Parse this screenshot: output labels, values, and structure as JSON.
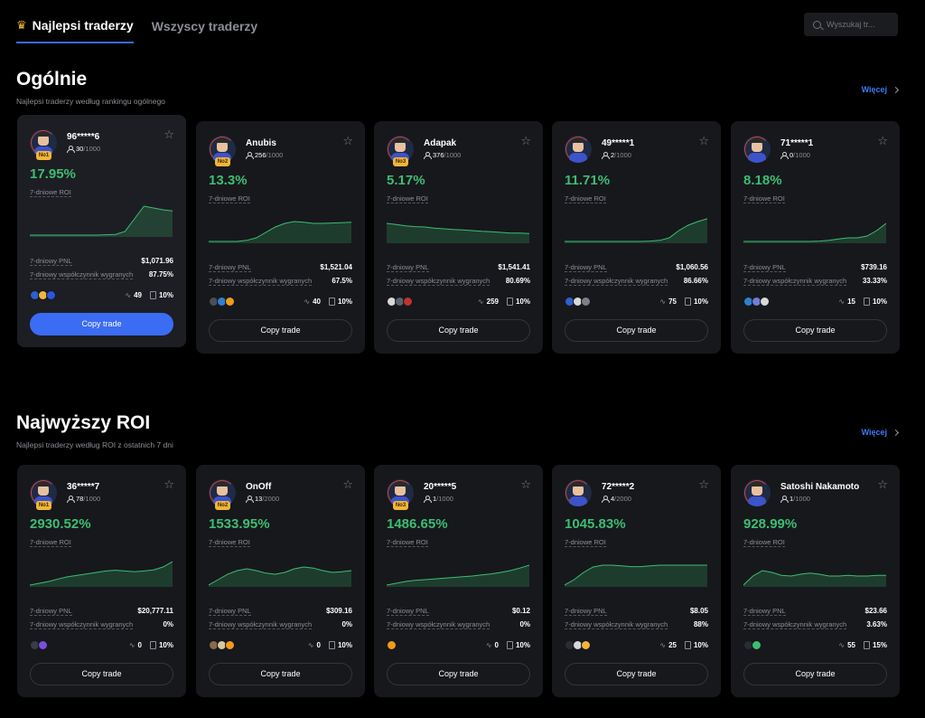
{
  "tabs": [
    {
      "label": "Najlepsi traderzy",
      "active": true,
      "icon": "crown-icon"
    },
    {
      "label": "Wszyscy traderzy",
      "active": false
    }
  ],
  "search": {
    "placeholder": "Wyszukaj tr..."
  },
  "colors": {
    "accent": "#3b6cf4",
    "positive": "#3dbd73",
    "rank_badge": "#f2b53a"
  },
  "sections": [
    {
      "title": "Ogólnie",
      "subtitle": "Najlepsi traderzy według rankingu ogólnego",
      "more": "Więcej",
      "cards": [
        {
          "name": "96*****6",
          "followers": "30",
          "max": "/1000",
          "rank": "No1",
          "roi": "17.95%",
          "roi_label": "7-dniowe ROI",
          "pnl_label": "7-dniowy PNL",
          "pnl": "$1,071.96",
          "win_label": "7-dniowy współczynnik wygranych",
          "win": "87.75%",
          "trades": "49",
          "share": "10%",
          "button": "Copy trade",
          "featured": true,
          "spark": [
            0.05,
            0.05,
            0.05,
            0.05,
            0.05,
            0.05,
            0.05,
            0.05,
            0.06,
            0.07,
            0.15,
            0.5,
            0.85,
            0.8,
            0.75,
            0.72
          ],
          "coins": [
            "#2f5fd0",
            "#f2b53a",
            "#2b54e0"
          ]
        },
        {
          "name": "Anubis",
          "followers": "256",
          "max": "/1000",
          "rank": "No2",
          "roi": "13.3%",
          "roi_label": "7-dniowe ROI",
          "pnl_label": "7-dniowy PNL",
          "pnl": "$1,521.04",
          "win_label": "7-dniowy współczynnik wygranych",
          "win": "67.5%",
          "trades": "40",
          "share": "10%",
          "button": "Copy trade",
          "featured": false,
          "spark": [
            0.05,
            0.05,
            0.05,
            0.05,
            0.08,
            0.15,
            0.3,
            0.45,
            0.55,
            0.6,
            0.58,
            0.55,
            0.55,
            0.56,
            0.57,
            0.58
          ],
          "coins": [
            "#4a4f57",
            "#2f7fd0",
            "#f29a1a"
          ]
        },
        {
          "name": "Adapak",
          "followers": "376",
          "max": "/1000",
          "rank": "No3",
          "roi": "5.17%",
          "roi_label": "7-dniowe ROI",
          "pnl_label": "7-dniowy PNL",
          "pnl": "$1,541.41",
          "win_label": "7-dniowy współczynnik wygranych",
          "win": "80.69%",
          "trades": "259",
          "share": "10%",
          "button": "Copy trade",
          "featured": false,
          "spark": [
            0.55,
            0.52,
            0.48,
            0.46,
            0.45,
            0.42,
            0.4,
            0.38,
            0.37,
            0.35,
            0.33,
            0.32,
            0.3,
            0.28,
            0.28,
            0.27
          ],
          "coins": [
            "#d8d8d8",
            "#5a6270",
            "#c0342a"
          ]
        },
        {
          "name": "49*****1",
          "followers": "2",
          "max": "/1000",
          "rank": "",
          "roi": "11.71%",
          "roi_label": "7-dniowe ROI",
          "pnl_label": "7-dniowy PNL",
          "pnl": "$1,060.56",
          "win_label": "7-dniowy współczynnik wygranych",
          "win": "86.66%",
          "trades": "75",
          "share": "10%",
          "button": "Copy trade",
          "featured": false,
          "spark": [
            0.05,
            0.05,
            0.05,
            0.05,
            0.05,
            0.05,
            0.05,
            0.05,
            0.05,
            0.06,
            0.08,
            0.15,
            0.35,
            0.5,
            0.6,
            0.68
          ],
          "coins": [
            "#2f5fd0",
            "#d8d8d8",
            "#7a7f88"
          ]
        },
        {
          "name": "71*****1",
          "followers": "0",
          "max": "/1000",
          "rank": "",
          "roi": "8.18%",
          "roi_label": "7-dniowe ROI",
          "pnl_label": "7-dniowy PNL",
          "pnl": "$739.16",
          "win_label": "7-dniowy współczynnik wygranych",
          "win": "33.33%",
          "trades": "15",
          "share": "10%",
          "button": "Copy trade",
          "featured": false,
          "spark": [
            0.05,
            0.05,
            0.05,
            0.05,
            0.05,
            0.05,
            0.05,
            0.05,
            0.06,
            0.08,
            0.12,
            0.15,
            0.15,
            0.2,
            0.35,
            0.55
          ],
          "coins": [
            "#2f7fd0",
            "#6f7fd8",
            "#d8d8d8"
          ]
        }
      ]
    },
    {
      "title": "Najwyższy ROI",
      "subtitle": "Najlepsi traderzy według ROI z ostatnich 7 dni",
      "more": "Więcej",
      "cards": [
        {
          "name": "36*****7",
          "followers": "78",
          "max": "/1000",
          "rank": "No1",
          "roi": "2930.52%",
          "roi_label": "7-dniowe ROI",
          "pnl_label": "7-dniowy PNL",
          "pnl": "$20,777.11",
          "win_label": "7-dniowy współczynnik wygranych",
          "win": "0%",
          "trades": "0",
          "share": "10%",
          "button": "Copy trade",
          "featured": false,
          "spark": [
            0.05,
            0.1,
            0.15,
            0.22,
            0.28,
            0.32,
            0.36,
            0.4,
            0.44,
            0.46,
            0.44,
            0.42,
            0.44,
            0.47,
            0.55,
            0.7
          ],
          "coins": [
            "#3a3d45",
            "#7b4ee0"
          ]
        },
        {
          "name": "OnOff",
          "followers": "13",
          "max": "/2000",
          "rank": "No2",
          "roi": "1533.95%",
          "roi_label": "7-dniowe ROI",
          "pnl_label": "7-dniowy PNL",
          "pnl": "$309.16",
          "win_label": "7-dniowy współczynnik wygranych",
          "win": "0%",
          "trades": "0",
          "share": "10%",
          "button": "Copy trade",
          "featured": false,
          "spark": [
            0.05,
            0.2,
            0.35,
            0.45,
            0.5,
            0.45,
            0.38,
            0.35,
            0.4,
            0.5,
            0.55,
            0.52,
            0.45,
            0.4,
            0.42,
            0.45
          ],
          "coins": [
            "#8a6a4a",
            "#d8c8a0",
            "#f29a1a"
          ]
        },
        {
          "name": "20*****5",
          "followers": "1",
          "max": "/1000",
          "rank": "No3",
          "roi": "1486.65%",
          "roi_label": "7-dniowe ROI",
          "pnl_label": "7-dniowy PNL",
          "pnl": "$0.12",
          "win_label": "7-dniowy współczynnik wygranych",
          "win": "0%",
          "trades": "0",
          "share": "10%",
          "button": "Copy trade",
          "featured": false,
          "spark": [
            0.05,
            0.1,
            0.15,
            0.18,
            0.2,
            0.22,
            0.24,
            0.26,
            0.28,
            0.3,
            0.33,
            0.36,
            0.4,
            0.45,
            0.52,
            0.6
          ],
          "coins": [
            "#f29a1a"
          ]
        },
        {
          "name": "72*****2",
          "followers": "4",
          "max": "/2000",
          "rank": "",
          "roi": "1045.83%",
          "roi_label": "7-dniowe ROI",
          "pnl_label": "7-dniowy PNL",
          "pnl": "$8.05",
          "win_label": "7-dniowy współczynnik wygranych",
          "win": "88%",
          "trades": "25",
          "share": "10%",
          "button": "Copy trade",
          "featured": false,
          "spark": [
            0.05,
            0.2,
            0.4,
            0.55,
            0.6,
            0.6,
            0.58,
            0.56,
            0.56,
            0.58,
            0.6,
            0.6,
            0.6,
            0.6,
            0.6,
            0.6
          ],
          "coins": [
            "#2a2c33",
            "#d8d8d8",
            "#f2b53a"
          ]
        },
        {
          "name": "Satoshi Nakamoto",
          "followers": "1",
          "max": "/1000",
          "rank": "",
          "roi": "928.99%",
          "roi_label": "7-dniowe ROI",
          "pnl_label": "7-dniowy PNL",
          "pnl": "$23.66",
          "win_label": "7-dniowy współczynnik wygranych",
          "win": "3.63%",
          "trades": "55",
          "share": "15%",
          "button": "Copy trade",
          "featured": false,
          "spark": [
            0.05,
            0.3,
            0.45,
            0.4,
            0.32,
            0.3,
            0.35,
            0.38,
            0.35,
            0.3,
            0.3,
            0.32,
            0.3,
            0.3,
            0.32,
            0.32
          ],
          "coins": [
            "#2a2c33",
            "#3dbd73"
          ]
        }
      ]
    }
  ]
}
